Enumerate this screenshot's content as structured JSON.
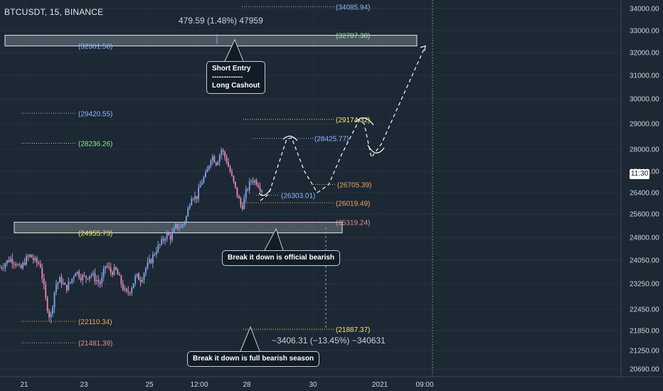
{
  "symbol_title": "BTCUSDT, 15, BINANCE",
  "measure_top": "479.59 (1.48%) 47959",
  "measure_bottom": "−3406.31 (−13.45%) −340631",
  "callouts": {
    "short_entry_line1": "Short Entry",
    "short_entry_line2": "-------------",
    "short_entry_line3": "Long Cashout",
    "bearish_official": "Break it down is official bearish",
    "bearish_full": "Break it down is full bearish season"
  },
  "price_tag": "11:30",
  "colors": {
    "background": "#1c2833",
    "zone_fill": "#c7d0d8",
    "level_blue": "#8fb8ff",
    "level_green": "#9be39b",
    "level_yellow": "#f5e663",
    "level_orange": "#f0a35e",
    "level_pink": "#e58a9a",
    "candle_up": "#7fa6e8",
    "candle_down": "#e88ab0"
  },
  "chart_data": {
    "type": "candlestick",
    "x_axis_labels": [
      "21",
      "23",
      "25",
      "12:00",
      "28",
      "30",
      "2021",
      "09:00"
    ],
    "y_axis_labels": [
      "34000.00",
      "33000.00",
      "32000.00",
      "31000.00",
      "30000.00",
      "29000.00",
      "28000.00",
      "27200.00",
      "26400.00",
      "25600.00",
      "24800.00",
      "24050.00",
      "23250.00",
      "22450.00",
      "21850.00",
      "21250.00",
      "20690.00"
    ],
    "zones": [
      {
        "from": 32301.58,
        "to": 32787.38,
        "label": "(32301.58)"
      },
      {
        "from": 24955.73,
        "to": 25319.24,
        "label": "(24955.73)"
      }
    ],
    "levels": [
      {
        "value": 34085.94,
        "label": "(34085.94)",
        "color": "blue"
      },
      {
        "value": 32787.38,
        "label": "(32787.38)",
        "color": "green"
      },
      {
        "value": 32301.58,
        "label": "(32301.58)",
        "color": "blue"
      },
      {
        "value": 29420.55,
        "label": "(29420.55)",
        "color": "blue"
      },
      {
        "value": 29174.32,
        "label": "(29174.32)",
        "color": "yellow"
      },
      {
        "value": 28425.77,
        "label": "(28425.77)",
        "color": "blue"
      },
      {
        "value": 28236.26,
        "label": "(28236.26)",
        "color": "green"
      },
      {
        "value": 26705.39,
        "label": "(26705.39)",
        "color": "orange"
      },
      {
        "value": 26303.01,
        "label": "(26303.01)",
        "color": "blue"
      },
      {
        "value": 26019.49,
        "label": "(26019.49)",
        "color": "orange"
      },
      {
        "value": 25319.24,
        "label": "(25319.24)",
        "color": "pink"
      },
      {
        "value": 24955.73,
        "label": "(24955.73)",
        "color": "yellow"
      },
      {
        "value": 22110.34,
        "label": "(22110.34)",
        "color": "orange"
      },
      {
        "value": 21887.37,
        "label": "(21887.37)",
        "color": "yellow"
      },
      {
        "value": 21481.39,
        "label": "(21481.39)",
        "color": "pink"
      }
    ],
    "close_path": [
      23800,
      23950,
      24100,
      24000,
      23700,
      24050,
      24200,
      24000,
      23900,
      22800,
      22150,
      23200,
      23400,
      23100,
      23300,
      23700,
      23500,
      23450,
      23600,
      23400,
      23250,
      23900,
      23650,
      23700,
      23300,
      22900,
      23100,
      23500,
      23400,
      23800,
      24050,
      24400,
      24600,
      24900,
      24800,
      25200,
      25150,
      25500,
      26300,
      26200,
      26800,
      27100,
      27800,
      27500,
      28000,
      27600,
      27000,
      26400,
      25800,
      26500,
      26900,
      26800,
      26500
    ],
    "projection": [
      26100,
      26350,
      28400,
      28450,
      27200,
      26400,
      26700,
      27800,
      29150,
      29000,
      27700,
      28200,
      32300
    ],
    "current_price_time": "11:30"
  }
}
